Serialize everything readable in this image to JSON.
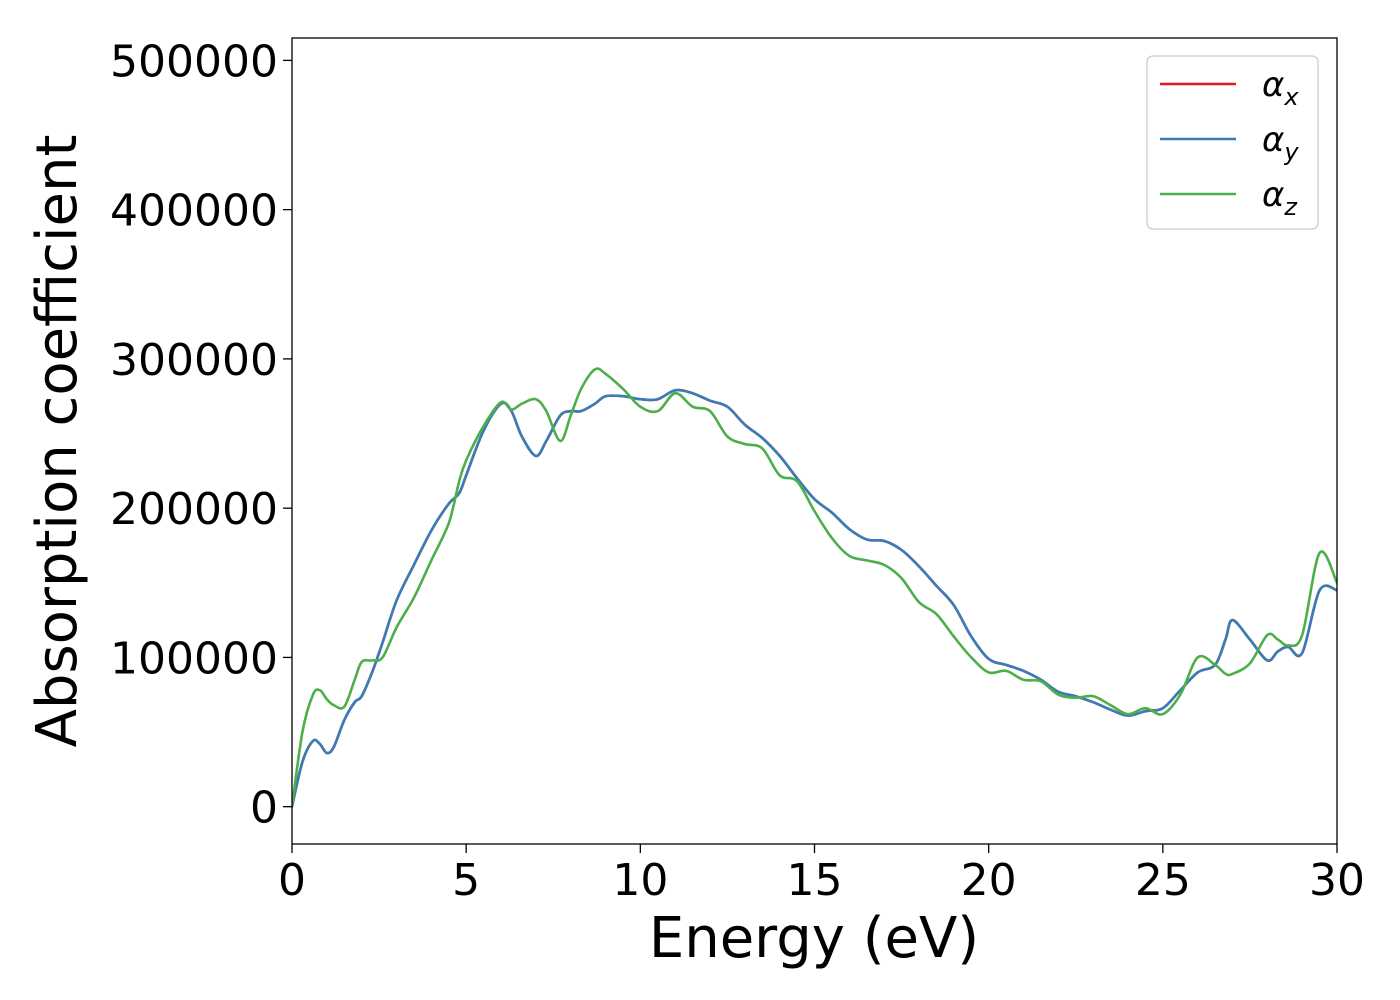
{
  "chart_data": {
    "type": "line",
    "title": "",
    "xlabel": "Energy (eV)",
    "ylabel": "Absorption coefficient",
    "xlim": [
      0,
      30
    ],
    "ylim": [
      -25000,
      515000
    ],
    "xticks": [
      "0",
      "5",
      "10",
      "15",
      "20",
      "25",
      "30"
    ],
    "yticks": [
      "0",
      "100000",
      "200000",
      "300000",
      "400000",
      "500000"
    ],
    "grid": false,
    "legend_position": "top-right",
    "series": [
      {
        "name": "α_x",
        "symbol": "α",
        "subscript": "x",
        "color": "#e41a1c",
        "x": [
          0,
          0.3,
          0.6,
          0.8,
          1.0,
          1.2,
          1.5,
          1.8,
          2.0,
          2.3,
          2.6,
          3.0,
          3.5,
          4.0,
          4.5,
          4.8,
          5.0,
          5.5,
          6.0,
          6.3,
          6.6,
          7.0,
          7.3,
          7.7,
          8.0,
          8.3,
          8.7,
          9.0,
          9.5,
          10.0,
          10.5,
          11.0,
          11.5,
          12.0,
          12.5,
          13.0,
          13.5,
          14.0,
          14.5,
          15.0,
          15.5,
          16.0,
          16.5,
          17.0,
          17.5,
          18.0,
          18.5,
          19.0,
          19.5,
          20.0,
          20.5,
          21.0,
          21.5,
          22.0,
          22.5,
          23.0,
          23.5,
          24.0,
          24.5,
          25.0,
          25.5,
          26.0,
          26.5,
          26.8,
          27.0,
          27.5,
          28.0,
          28.3,
          28.6,
          29.0,
          29.5,
          30.0
        ],
        "y": [
          0,
          30000,
          44000,
          42000,
          36000,
          40000,
          58000,
          70000,
          74000,
          90000,
          110000,
          138000,
          162000,
          185000,
          203000,
          210000,
          222000,
          252000,
          270000,
          265000,
          248000,
          235000,
          245000,
          262000,
          265000,
          265000,
          270000,
          275000,
          275000,
          273000,
          273000,
          279000,
          277000,
          272000,
          268000,
          256000,
          247000,
          235000,
          220000,
          206000,
          197000,
          186000,
          179000,
          178000,
          172000,
          161000,
          148000,
          135000,
          114000,
          99000,
          95000,
          91000,
          85000,
          77000,
          74000,
          70000,
          65000,
          61000,
          64000,
          66000,
          78000,
          90000,
          95000,
          112000,
          125000,
          112000,
          98000,
          104000,
          107000,
          103000,
          145000,
          145000
        ]
      },
      {
        "name": "α_y",
        "symbol": "α",
        "subscript": "y",
        "color": "#377eb8",
        "x": [
          0,
          0.3,
          0.6,
          0.8,
          1.0,
          1.2,
          1.5,
          1.8,
          2.0,
          2.3,
          2.6,
          3.0,
          3.5,
          4.0,
          4.5,
          4.8,
          5.0,
          5.5,
          6.0,
          6.3,
          6.6,
          7.0,
          7.3,
          7.7,
          8.0,
          8.3,
          8.7,
          9.0,
          9.5,
          10.0,
          10.5,
          11.0,
          11.5,
          12.0,
          12.5,
          13.0,
          13.5,
          14.0,
          14.5,
          15.0,
          15.5,
          16.0,
          16.5,
          17.0,
          17.5,
          18.0,
          18.5,
          19.0,
          19.5,
          20.0,
          20.5,
          21.0,
          21.5,
          22.0,
          22.5,
          23.0,
          23.5,
          24.0,
          24.5,
          25.0,
          25.5,
          26.0,
          26.5,
          26.8,
          27.0,
          27.5,
          28.0,
          28.3,
          28.6,
          29.0,
          29.5,
          30.0
        ],
        "y": [
          0,
          30000,
          44000,
          42000,
          36000,
          40000,
          58000,
          70000,
          74000,
          90000,
          110000,
          138000,
          162000,
          185000,
          203000,
          210000,
          222000,
          252000,
          270000,
          265000,
          248000,
          235000,
          245000,
          262000,
          265000,
          265000,
          270000,
          275000,
          275000,
          273000,
          273000,
          279000,
          277000,
          272000,
          268000,
          256000,
          247000,
          235000,
          220000,
          206000,
          197000,
          186000,
          179000,
          178000,
          172000,
          161000,
          148000,
          135000,
          114000,
          99000,
          95000,
          91000,
          85000,
          77000,
          74000,
          70000,
          65000,
          61000,
          64000,
          66000,
          78000,
          90000,
          95000,
          112000,
          125000,
          112000,
          98000,
          104000,
          107000,
          103000,
          145000,
          145000
        ]
      },
      {
        "name": "α_z",
        "symbol": "α",
        "subscript": "z",
        "color": "#4daf4a",
        "x": [
          0,
          0.3,
          0.6,
          0.8,
          1.0,
          1.2,
          1.5,
          1.8,
          2.0,
          2.3,
          2.6,
          3.0,
          3.5,
          4.0,
          4.5,
          4.8,
          5.0,
          5.5,
          6.0,
          6.3,
          6.6,
          7.0,
          7.3,
          7.7,
          8.0,
          8.3,
          8.7,
          9.0,
          9.5,
          10.0,
          10.5,
          11.0,
          11.5,
          12.0,
          12.5,
          13.0,
          13.5,
          14.0,
          14.5,
          15.0,
          15.5,
          16.0,
          16.5,
          17.0,
          17.5,
          18.0,
          18.5,
          19.0,
          19.5,
          20.0,
          20.5,
          21.0,
          21.5,
          22.0,
          22.5,
          23.0,
          23.5,
          24.0,
          24.5,
          25.0,
          25.5,
          26.0,
          26.5,
          26.8,
          27.0,
          27.5,
          28.0,
          28.3,
          28.6,
          29.0,
          29.5,
          30.0
        ],
        "y": [
          0,
          50000,
          75000,
          78000,
          72000,
          68000,
          67000,
          85000,
          97000,
          98000,
          100000,
          120000,
          140000,
          165000,
          190000,
          218000,
          232000,
          255000,
          271000,
          266000,
          270000,
          273000,
          265000,
          245000,
          262000,
          280000,
          293000,
          290000,
          280000,
          268000,
          265000,
          277000,
          268000,
          265000,
          248000,
          243000,
          240000,
          222000,
          218000,
          198000,
          180000,
          168000,
          165000,
          162000,
          153000,
          137000,
          129000,
          114000,
          100000,
          90000,
          91000,
          85000,
          84000,
          75000,
          73000,
          74000,
          68000,
          62000,
          66000,
          62000,
          75000,
          100000,
          95000,
          89000,
          89000,
          96000,
          115000,
          112000,
          108000,
          115000,
          170000,
          150000
        ]
      }
    ]
  }
}
